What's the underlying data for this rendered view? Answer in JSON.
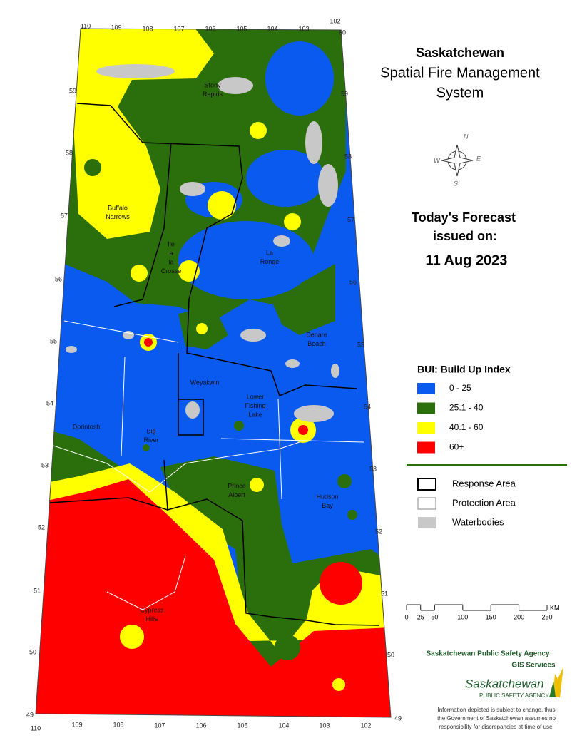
{
  "title": {
    "line1": "Saskatchewan",
    "line2": "Spatial Fire Management",
    "line3": "System"
  },
  "forecast": {
    "line1": "Today's Forecast",
    "line2": "issued on:",
    "date": "11 Aug 2023"
  },
  "legend": {
    "title": "BUI: Build Up Index",
    "items": [
      {
        "label": "0 - 25",
        "color": "#0a5af0"
      },
      {
        "label": "25.1 - 40",
        "color": "#2b6e0c"
      },
      {
        "label": "40.1 - 60",
        "color": "#ffff00"
      },
      {
        "label": "60+",
        "color": "#ff0000"
      }
    ]
  },
  "boundary_legend": {
    "items": [
      {
        "label": "Response Area",
        "color": "#000000"
      },
      {
        "label": "Protection Area",
        "color": "#ffffff"
      },
      {
        "label": "Waterbodies",
        "color": "#c8c8c8"
      }
    ]
  },
  "scale_bar": {
    "unit": "KM",
    "ticks": [
      0,
      25,
      50,
      100,
      150,
      200,
      250
    ]
  },
  "compass": {
    "n": "N",
    "e": "E",
    "s": "S",
    "w": "W"
  },
  "graticule": {
    "longitudes": [
      110,
      109,
      108,
      107,
      106,
      105,
      104,
      103,
      102
    ],
    "latitudes": [
      60,
      59,
      58,
      57,
      56,
      55,
      54,
      53,
      52,
      51,
      50,
      49
    ]
  },
  "places": [
    {
      "lines": [
        "Stony",
        "Rapids"
      ]
    },
    {
      "lines": [
        "Buffalo",
        "Narrows"
      ]
    },
    {
      "lines": [
        "Ile",
        "a",
        "la",
        "Crosse"
      ]
    },
    {
      "lines": [
        "La",
        "Ronge"
      ]
    },
    {
      "lines": [
        "Denare",
        "Beach"
      ]
    },
    {
      "lines": [
        "Weyakwin"
      ]
    },
    {
      "lines": [
        "Lower",
        "Fishing",
        "Lake"
      ]
    },
    {
      "lines": [
        "Dorintosh"
      ]
    },
    {
      "lines": [
        "Big",
        "River"
      ]
    },
    {
      "lines": [
        "Prince",
        "Albert"
      ]
    },
    {
      "lines": [
        "Hudson",
        "Bay"
      ]
    },
    {
      "lines": [
        "Cypress",
        "Hills"
      ]
    }
  ],
  "footer": {
    "agency": "Saskatchewan Public Safety Agency",
    "unit": "GIS  Services",
    "logo_name": "Saskatchewan",
    "logo_sub": "PUBLIC SAFETY AGENCY",
    "disclaimer": [
      "Information depicted is subject to change, thus",
      "the Government of Saskatchewan assumes no",
      "responsibility for discrepancies at time of use."
    ]
  }
}
